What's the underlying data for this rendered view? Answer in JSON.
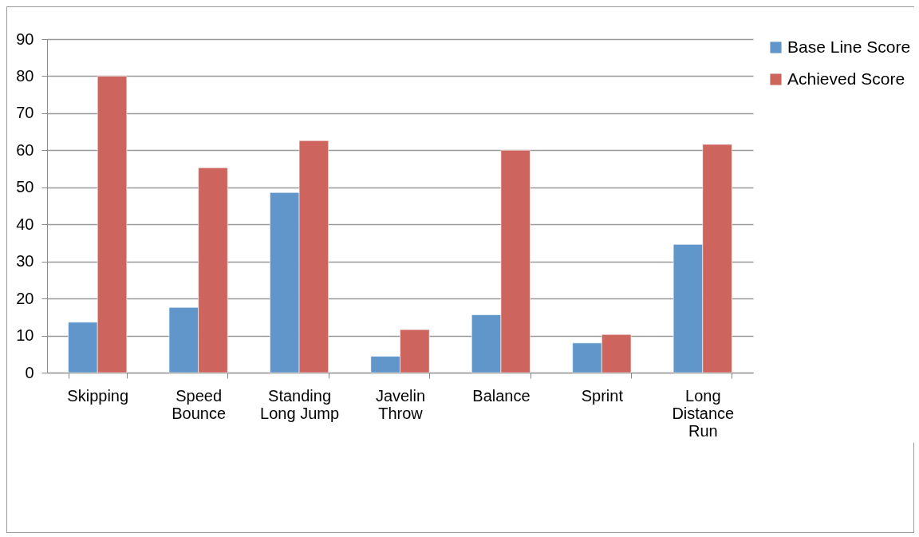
{
  "chart_data": {
    "type": "bar",
    "categories": [
      "Skipping",
      "Speed Bounce",
      "Standing Long Jump",
      "Javelin Throw",
      "Balance",
      "Sprint",
      "Long Distance Run"
    ],
    "series": [
      {
        "name": "Base Line Score",
        "color": "#6096c9",
        "values": [
          13.6,
          17.6,
          48.6,
          4.4,
          15.6,
          8,
          34.6
        ]
      },
      {
        "name": "Achieved Score",
        "color": "#cd645d",
        "values": [
          80,
          55.3,
          62.6,
          11.6,
          60,
          10.3,
          61.6
        ]
      }
    ],
    "ylim": [
      0,
      90
    ],
    "yticks": [
      0,
      10,
      20,
      30,
      40,
      50,
      60,
      70,
      80,
      90
    ],
    "grid": "y",
    "legend": "right"
  }
}
